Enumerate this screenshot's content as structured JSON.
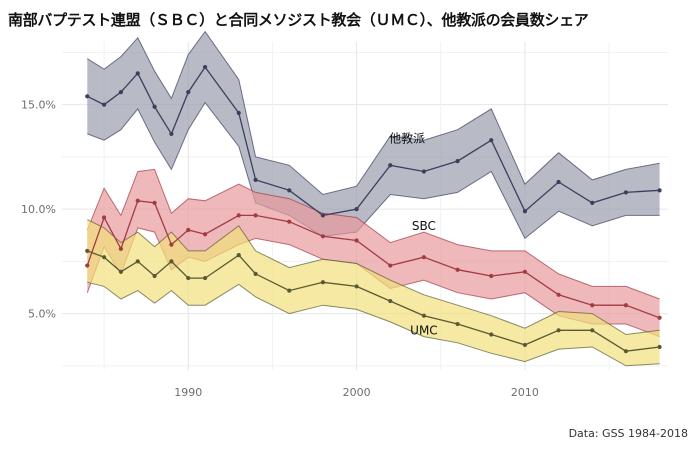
{
  "chart_data": {
    "type": "line",
    "title": "南部バプテスト連盟（ＳＢＣ）と合同メソジスト教会（ＵＭＣ）、他教派の会員数シェア",
    "caption": "Data: GSS 1984-2018",
    "xlabel": "",
    "ylabel": "",
    "xlim": [
      1982.5,
      2018.5
    ],
    "ylim": [
      2.3,
      18.0
    ],
    "x_ticks": [
      1990,
      2000,
      2010
    ],
    "y_ticks": [
      5,
      10,
      15
    ],
    "y_tick_format": "percent",
    "grid": true,
    "legend": "none (direct labels)",
    "series": [
      {
        "name": "他教派",
        "color": "#3b3f5c",
        "fill": "#9a9dae",
        "label_at": [
          2003.0,
          13.2
        ],
        "x": [
          1984,
          1985,
          1986,
          1987,
          1988,
          1989,
          1990,
          1991,
          1993,
          1994,
          1996,
          1998,
          2000,
          2002,
          2004,
          2006,
          2008,
          2010,
          2012,
          2014,
          2016,
          2018
        ],
        "y": [
          15.4,
          15.0,
          15.6,
          16.5,
          14.9,
          13.6,
          15.6,
          16.8,
          14.6,
          11.4,
          10.9,
          9.7,
          10.0,
          12.1,
          11.8,
          12.3,
          13.3,
          9.9,
          11.3,
          10.3,
          10.8,
          10.9
        ],
        "upper": [
          17.2,
          16.7,
          17.3,
          18.2,
          16.6,
          15.3,
          17.4,
          18.5,
          16.2,
          12.5,
          12.1,
          10.7,
          11.1,
          13.5,
          13.3,
          13.8,
          14.8,
          11.2,
          12.7,
          11.4,
          11.9,
          12.2
        ],
        "lower": [
          13.6,
          13.3,
          13.8,
          14.8,
          13.2,
          11.9,
          13.8,
          15.1,
          13.0,
          10.3,
          9.7,
          8.7,
          8.9,
          10.7,
          10.5,
          10.8,
          11.8,
          8.6,
          9.9,
          9.2,
          9.7,
          9.7
        ]
      },
      {
        "name": "SBC",
        "color": "#a23b44",
        "fill": "#e89a9c",
        "label_at": [
          2004.0,
          9.0
        ],
        "x": [
          1984,
          1985,
          1986,
          1987,
          1988,
          1989,
          1990,
          1991,
          1993,
          1994,
          1996,
          1998,
          2000,
          2002,
          2004,
          2006,
          2008,
          2010,
          2012,
          2014,
          2016,
          2018
        ],
        "y": [
          7.3,
          9.6,
          8.1,
          10.4,
          10.3,
          8.3,
          9.0,
          8.8,
          9.7,
          9.7,
          9.4,
          8.7,
          8.5,
          7.3,
          7.7,
          7.1,
          6.8,
          7.0,
          5.9,
          5.4,
          5.4,
          4.8
        ],
        "upper": [
          9.0,
          11.0,
          9.7,
          11.8,
          11.9,
          9.8,
          10.5,
          10.4,
          11.2,
          10.8,
          10.5,
          9.8,
          9.6,
          8.4,
          8.9,
          8.3,
          8.0,
          8.0,
          6.9,
          6.3,
          6.3,
          5.7
        ],
        "lower": [
          6.0,
          8.2,
          6.9,
          9.1,
          8.9,
          7.1,
          7.7,
          7.5,
          8.3,
          8.6,
          8.3,
          7.6,
          7.4,
          6.2,
          6.6,
          6.0,
          5.7,
          6.0,
          4.9,
          4.5,
          4.5,
          3.9
        ]
      },
      {
        "name": "UMC",
        "color": "#5a5a32",
        "fill": "#f1e07c",
        "label_at": [
          2004.0,
          4.0
        ],
        "x": [
          1984,
          1985,
          1986,
          1987,
          1988,
          1989,
          1990,
          1991,
          1993,
          1994,
          1996,
          1998,
          2000,
          2002,
          2004,
          2006,
          2008,
          2010,
          2012,
          2014,
          2016,
          2018
        ],
        "y": [
          8.0,
          7.7,
          7.0,
          7.5,
          6.8,
          7.5,
          6.7,
          6.7,
          7.8,
          6.9,
          6.1,
          6.5,
          6.3,
          5.6,
          4.9,
          4.5,
          4.0,
          3.5,
          4.2,
          4.2,
          3.2,
          3.4
        ],
        "upper": [
          9.5,
          9.1,
          8.4,
          8.9,
          8.2,
          8.9,
          8.0,
          8.0,
          9.2,
          8.0,
          7.2,
          7.6,
          7.4,
          6.6,
          5.9,
          5.4,
          4.9,
          4.3,
          5.1,
          5.0,
          4.0,
          4.2
        ],
        "lower": [
          6.5,
          6.3,
          5.7,
          6.1,
          5.5,
          6.1,
          5.4,
          5.4,
          6.4,
          5.8,
          5.0,
          5.4,
          5.2,
          4.6,
          3.9,
          3.6,
          3.1,
          2.7,
          3.3,
          3.4,
          2.5,
          2.6
        ]
      }
    ]
  }
}
